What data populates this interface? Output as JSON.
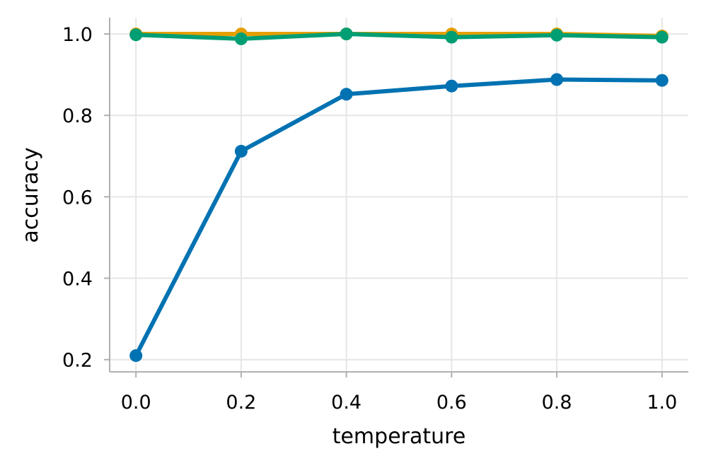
{
  "chart_data": {
    "type": "line",
    "title": "",
    "xlabel": "temperature",
    "ylabel": "accuracy",
    "xlim": [
      -0.05,
      1.05
    ],
    "ylim": [
      0.17,
      1.04
    ],
    "x_ticks": [
      "0.0",
      "0.2",
      "0.4",
      "0.6",
      "0.8",
      "1.0"
    ],
    "y_ticks": [
      "0.2",
      "0.4",
      "0.6",
      "0.8",
      "1.0"
    ],
    "grid": true,
    "legend": "none",
    "x": [
      0.0,
      0.2,
      0.4,
      0.6,
      0.8,
      1.0
    ],
    "series": [
      {
        "color": "#E69F00",
        "values": [
          1.0,
          1.0,
          1.0,
          1.0,
          1.0,
          0.995
        ]
      },
      {
        "color": "#009E73",
        "values": [
          0.998,
          0.988,
          1.0,
          0.992,
          0.997,
          0.992
        ]
      },
      {
        "color": "#0072B2",
        "values": [
          0.21,
          0.712,
          0.852,
          0.872,
          0.888,
          0.886
        ]
      }
    ]
  }
}
